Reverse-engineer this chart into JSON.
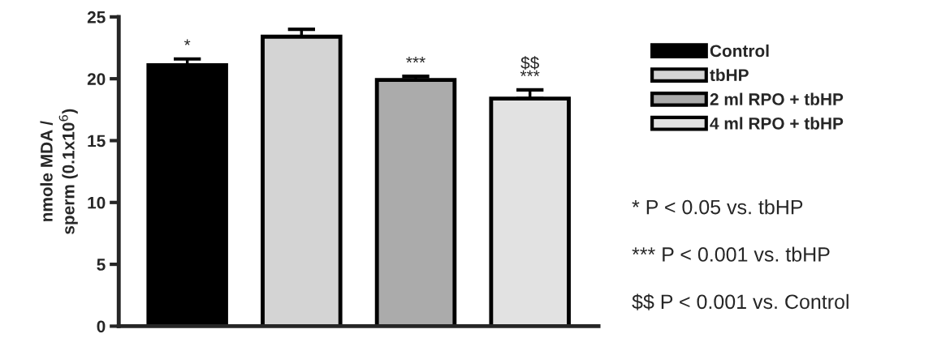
{
  "chart_data": {
    "type": "bar",
    "ylabel": "nmole MDA /\nsperm (0.1x10$^{6}$)",
    "categories": [
      null,
      null,
      null,
      null
    ],
    "series": [
      {
        "name": "Control",
        "color": "#000000",
        "values": [
          21.1,
          null,
          null,
          null
        ],
        "errors": [
          0.5,
          null,
          null,
          null
        ],
        "value_labels": [
          "*",
          null,
          null,
          null
        ]
      },
      {
        "name": "tbHP",
        "color": "#d4d4d4",
        "values": [
          null,
          23.4,
          null,
          null
        ],
        "errors": [
          null,
          0.6,
          null,
          null
        ]
      },
      {
        "name": "2 ml RPO + tbHP",
        "color": "#ababab",
        "values": [
          null,
          null,
          19.9,
          null
        ],
        "errors": [
          null,
          null,
          0.3,
          null
        ],
        "value_labels": [
          null,
          null,
          "***",
          null
        ]
      },
      {
        "name": "4 ml RPO + tbHP",
        "color": "#e2e2e2",
        "values": [
          null,
          null,
          null,
          18.4
        ],
        "errors": [
          null,
          null,
          null,
          0.7
        ],
        "value_labels": [
          null,
          null,
          null,
          "$$\n***"
        ]
      }
    ],
    "ylim": [
      0,
      25
    ],
    "yticks": [
      0,
      5,
      10,
      15,
      20,
      25
    ],
    "legend": "right",
    "annotations": [
      "* P < 0.05 vs. tbHP",
      "*** P < 0.001 vs. tbHP",
      "$$ P < 0.001 vs. Control"
    ]
  }
}
